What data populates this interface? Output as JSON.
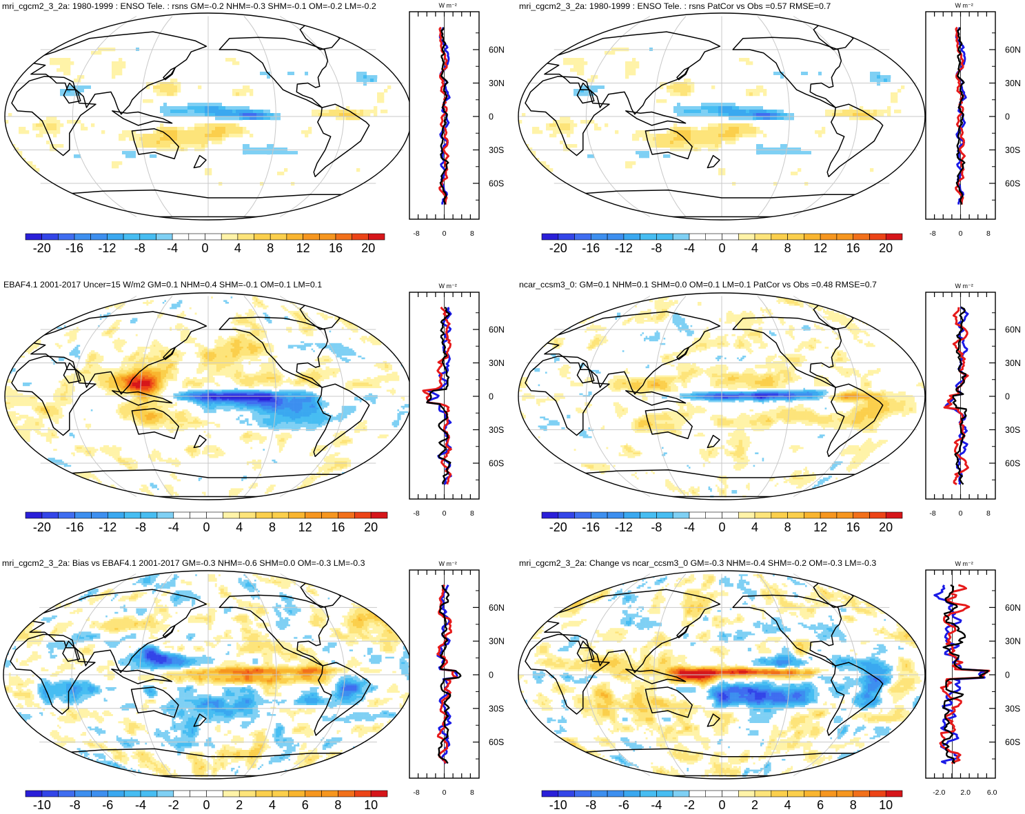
{
  "units": "W m⁻²",
  "lat_ticks": [
    "60N",
    "30N",
    "0",
    "30S",
    "60S"
  ],
  "palette_a": [
    "#2a1fd8",
    "#3345e8",
    "#3f6df0",
    "#3d8fef",
    "#3aa8f0",
    "#47bdf2",
    "#7fd0f4",
    "#ffffff",
    "#ffffff",
    "#fff3a8",
    "#fde47a",
    "#fbcf4c",
    "#f9b52f",
    "#f6961f",
    "#f2701a",
    "#ec4417",
    "#d6161a"
  ],
  "panels": [
    {
      "title": "mri_cgcm2_3_2a: 1980-1999 : ENSO Tele. : rsns GM=-0.2 NHM=-0.3 SHM=-0.1 OM=-0.2 LM=-0.2",
      "colorbar_labels": [
        "-20",
        "-16",
        "-12",
        "-8",
        "-4",
        "0",
        "4",
        "8",
        "12",
        "16",
        "20"
      ],
      "zonal_ticks": [
        "-8",
        "0",
        "8"
      ],
      "zonal_range": [
        -10,
        10
      ],
      "style": "coarse",
      "seed": 11
    },
    {
      "title": "mri_cgcm2_3_2a: 1980-1999 : ENSO Tele. : rsns PatCor vs Obs =0.57 RMSE=0.7",
      "colorbar_labels": [
        "-20",
        "-16",
        "-12",
        "-8",
        "-4",
        "0",
        "4",
        "8",
        "12",
        "16",
        "20"
      ],
      "zonal_ticks": [
        "-8",
        "0",
        "8"
      ],
      "zonal_range": [
        -10,
        10
      ],
      "style": "coarse",
      "seed": 11
    },
    {
      "title": "EBAF4.1 2001-2017 Uncer=15 W/m2 GM=0.1 NHM=0.4 SHM=-0.1 OM=0.1 LM=0.1",
      "colorbar_labels": [
        "-20",
        "-16",
        "-12",
        "-8",
        "-4",
        "0",
        "4",
        "8",
        "12",
        "16",
        "20"
      ],
      "zonal_ticks": [
        "-8",
        "0",
        "8"
      ],
      "zonal_range": [
        -10,
        10
      ],
      "style": "obs",
      "seed": 23
    },
    {
      "title": "ncar_ccsm3_0: GM=0.1 NHM=0.1 SHM=0.0 OM=0.1 LM=0.1 PatCor vs Obs =0.48 RMSE=0.7",
      "colorbar_labels": [
        "-20",
        "-16",
        "-12",
        "-8",
        "-4",
        "0",
        "4",
        "8",
        "12",
        "16",
        "20"
      ],
      "zonal_ticks": [
        "-8",
        "0",
        "8"
      ],
      "zonal_range": [
        -10,
        10
      ],
      "style": "model",
      "seed": 37
    },
    {
      "title": "mri_cgcm2_3_2a: Bias vs EBAF4.1 2001-2017 GM=-0.3 NHM=-0.6 SHM=0.0 OM=-0.3 LM=-0.3",
      "colorbar_labels": [
        "-10",
        "-8",
        "-6",
        "-4",
        "-2",
        "0",
        "2",
        "4",
        "6",
        "8",
        "10"
      ],
      "zonal_ticks": [
        "-8",
        "0",
        "8"
      ],
      "zonal_range": [
        -10,
        10
      ],
      "style": "bias",
      "seed": 51
    },
    {
      "title": "mri_cgcm2_3_2a: Change vs ncar_ccsm3_0 GM=-0.3 NHM=-0.4 SHM=-0.2 OM=-0.3 LM=-0.3",
      "colorbar_labels": [
        "-10",
        "-8",
        "-6",
        "-4",
        "-2",
        "0",
        "2",
        "4",
        "6",
        "8",
        "10"
      ],
      "zonal_ticks": [
        "-2.0",
        "2.0",
        "6.0"
      ],
      "zonal_range": [
        -4,
        6.5
      ],
      "style": "change",
      "seed": 67
    }
  ],
  "chart_data": [
    {
      "type": "heatmap",
      "title": "mri_cgcm2_3_2a: 1980-1999 : ENSO Tele. : rsns GM=-0.2 NHM=-0.3 SHM=-0.1 OM=-0.2 LM=-0.2",
      "colorbar_range": [
        -20,
        20
      ],
      "zonal_axis": [
        "-8",
        "0",
        "8"
      ]
    },
    {
      "type": "heatmap",
      "title": "mri_cgcm2_3_2a: 1980-1999 : ENSO Tele. : rsns PatCor vs Obs =0.57 RMSE=0.7",
      "colorbar_range": [
        -20,
        20
      ],
      "zonal_axis": [
        "-8",
        "0",
        "8"
      ]
    },
    {
      "type": "heatmap",
      "title": "EBAF4.1 2001-2017 Uncer=15 W/m2 GM=0.1 NHM=0.4 SHM=-0.1 OM=0.1 LM=0.1",
      "colorbar_range": [
        -20,
        20
      ],
      "zonal_axis": [
        "-8",
        "0",
        "8"
      ]
    },
    {
      "type": "heatmap",
      "title": "ncar_ccsm3_0: GM=0.1 NHM=0.1 SHM=0.0 OM=0.1 LM=0.1 PatCor vs Obs =0.48 RMSE=0.7",
      "colorbar_range": [
        -20,
        20
      ],
      "zonal_axis": [
        "-8",
        "0",
        "8"
      ]
    },
    {
      "type": "heatmap",
      "title": "mri_cgcm2_3_2a: Bias vs EBAF4.1 2001-2017 GM=-0.3 NHM=-0.6 SHM=0.0 OM=-0.3 LM=-0.3",
      "colorbar_range": [
        -10,
        10
      ],
      "zonal_axis": [
        "-8",
        "0",
        "8"
      ]
    },
    {
      "type": "heatmap",
      "title": "mri_cgcm2_3_2a: Change vs ncar_ccsm3_0 GM=-0.3 NHM=-0.4 SHM=-0.2 OM=-0.3 LM=-0.3",
      "colorbar_range": [
        -10,
        10
      ],
      "zonal_axis": [
        "-2.0",
        "2.0",
        "6.0"
      ]
    }
  ]
}
